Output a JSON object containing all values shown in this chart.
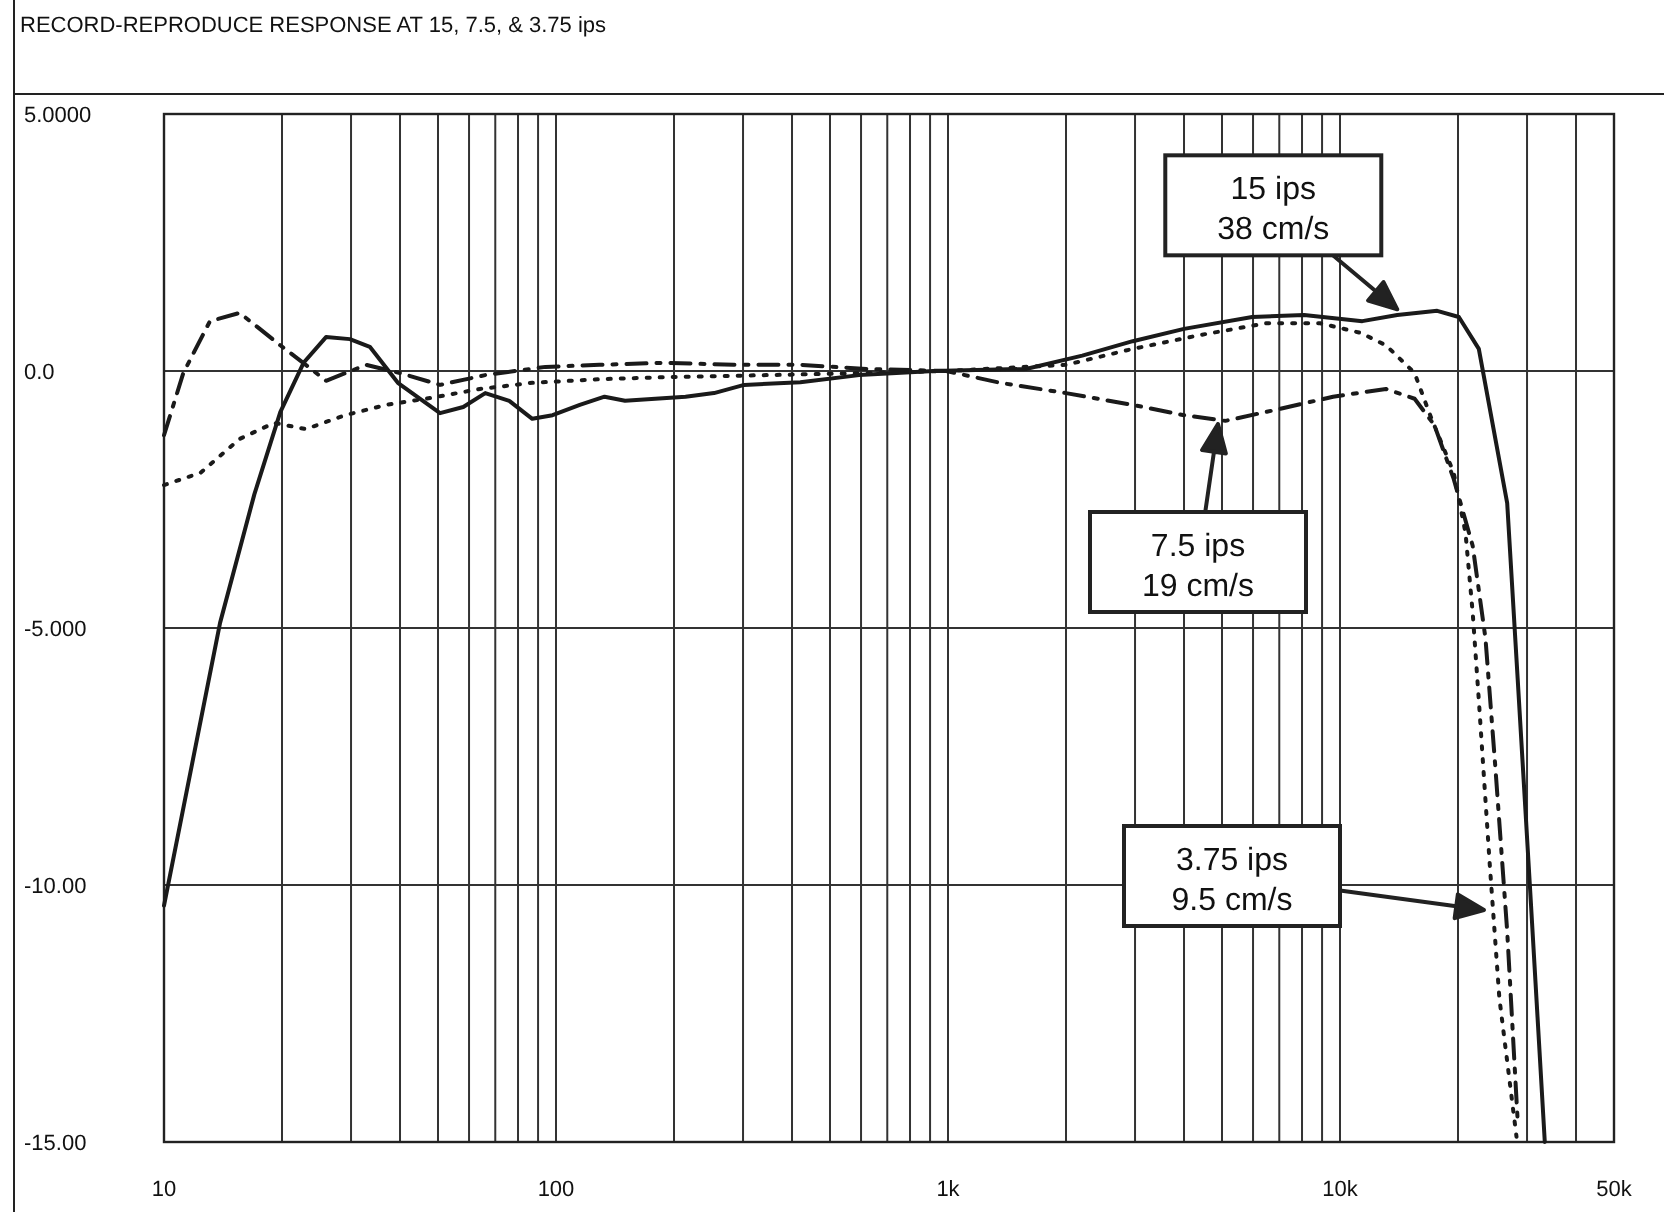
{
  "chart_data": {
    "type": "line",
    "title": "RECORD-REPRODUCE RESPONSE AT 15, 7.5, & 3.75 ips",
    "log": "x",
    "grid": true,
    "marker": "none",
    "xlim": [
      10,
      50000
    ],
    "ylim": [
      -15,
      5
    ],
    "xticks": [
      10,
      {
        "value": 20,
        "label": null
      },
      {
        "value": 30,
        "label": null
      },
      {
        "value": 40,
        "label": null
      },
      {
        "value": 50,
        "label": null
      },
      {
        "value": 60,
        "label": null
      },
      {
        "value": 70,
        "label": null
      },
      {
        "value": 80,
        "label": null
      },
      {
        "value": 90,
        "label": null
      },
      100,
      {
        "value": 200,
        "label": null
      },
      {
        "value": 300,
        "label": null
      },
      {
        "value": 400,
        "label": null
      },
      {
        "value": 500,
        "label": null
      },
      {
        "value": 600,
        "label": null
      },
      {
        "value": 700,
        "label": null
      },
      {
        "value": 800,
        "label": null
      },
      {
        "value": 900,
        "label": null
      },
      {
        "value": 1000,
        "label": "1k"
      },
      {
        "value": 2000,
        "label": null
      },
      {
        "value": 3000,
        "label": null
      },
      {
        "value": 4000,
        "label": null
      },
      {
        "value": 5000,
        "label": null
      },
      {
        "value": 6000,
        "label": null
      },
      {
        "value": 7000,
        "label": null
      },
      {
        "value": 8000,
        "label": null
      },
      {
        "value": 9000,
        "label": null
      },
      {
        "value": 10000,
        "label": "10k"
      },
      {
        "value": 20000,
        "label": null
      },
      {
        "value": 30000,
        "label": null
      },
      {
        "value": 40000,
        "label": null
      },
      {
        "value": 50000,
        "label": "50k"
      }
    ],
    "yticks": [
      {
        "value": 5,
        "label": "5.0000"
      },
      {
        "value": 0,
        "label": "0.0"
      },
      {
        "value": -5,
        "label": "-5.000"
      },
      {
        "value": -10,
        "label": "-10.00"
      },
      {
        "value": -15,
        "label": "-15.00"
      }
    ],
    "series": [
      {
        "color": "#1a1a1a",
        "line_style": "solid",
        "x": [
          10,
          13.9,
          17,
          19.8,
          22.7,
          25.9,
          29.8,
          33.5,
          39.5,
          50.6,
          58,
          66,
          76,
          87,
          98,
          115,
          133,
          150,
          214,
          253,
          302,
          420,
          593,
          920,
          1580,
          2200,
          2960,
          4000,
          5970,
          8100,
          11400,
          14000,
          17700,
          20100,
          22600,
          26700,
          28400,
          30500,
          33300
        ],
        "values": [
          -10.4,
          -4.9,
          -2.4,
          -0.8,
          0.16,
          0.66,
          0.62,
          0.47,
          -0.23,
          -0.82,
          -0.7,
          -0.43,
          -0.58,
          -0.93,
          -0.86,
          -0.66,
          -0.5,
          -0.58,
          -0.5,
          -0.43,
          -0.27,
          -0.22,
          -0.08,
          0,
          0.04,
          0.3,
          0.58,
          0.82,
          1.05,
          1.09,
          0.97,
          1.09,
          1.17,
          1.05,
          0.43,
          -2.57,
          -6,
          -10,
          -15
        ]
      },
      {
        "color": "#1a1a1a",
        "line_style": "dashdot",
        "x": [
          10,
          11.2,
          13.1,
          15.6,
          19.8,
          23,
          25.9,
          32.8,
          40,
          50.6,
          66,
          94,
          129,
          190,
          284,
          420,
          620,
          990,
          1360,
          2000,
          2960,
          4000,
          5100,
          7000,
          9600,
          13100,
          15500,
          17400,
          19500,
          21800,
          23500,
          24900,
          26700,
          28400
        ],
        "values": [
          -1.25,
          -0.04,
          0.97,
          1.13,
          0.5,
          0.12,
          -0.19,
          0.12,
          -0.04,
          -0.27,
          -0.08,
          0.08,
          0.12,
          0.16,
          0.12,
          0.12,
          0.04,
          0,
          -0.23,
          -0.43,
          -0.66,
          -0.86,
          -0.97,
          -0.74,
          -0.5,
          -0.35,
          -0.54,
          -1.05,
          -2.1,
          -3.4,
          -5.2,
          -7.7,
          -10.9,
          -14.6
        ]
      },
      {
        "color": "#1a1a1a",
        "line_style": "dotted",
        "x": [
          10,
          12.4,
          15.6,
          19.1,
          23,
          29,
          36.8,
          46.6,
          64,
          87,
          129,
          190,
          344,
          620,
          990,
          2000,
          2960,
          4400,
          6500,
          8900,
          11300,
          13100,
          15500,
          16900,
          19500,
          20900,
          21800,
          22600,
          24100,
          25500,
          28200
        ],
        "values": [
          -2.22,
          -1.98,
          -1.32,
          -1.01,
          -1.13,
          -0.86,
          -0.66,
          -0.54,
          -0.35,
          -0.23,
          -0.16,
          -0.12,
          -0.08,
          -0.04,
          0,
          0.12,
          0.43,
          0.7,
          0.93,
          0.93,
          0.74,
          0.5,
          -0.04,
          -0.82,
          -1.98,
          -3.15,
          -4.7,
          -6.4,
          -9.6,
          -12.2,
          -14.9
        ]
      }
    ],
    "annotations": [
      {
        "text": "15 ips\n38 cm/s",
        "x": 14000,
        "y": 1.2
      },
      "7.5 ips\n19 cm/s",
      "3.75 ips\n9.5 cm/s"
    ]
  }
}
